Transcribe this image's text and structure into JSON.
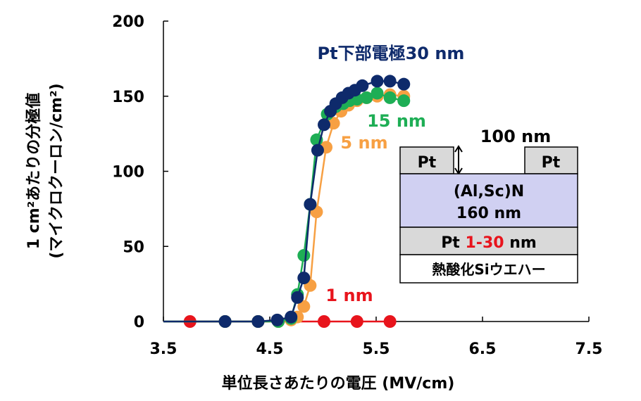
{
  "chart_data": {
    "type": "line",
    "xlabel": "単位長さあたりの電圧 (MV/cm)",
    "ylabel_lines": [
      "1 cm²あたりの分極値",
      "(マイクロクーロン/cm²)"
    ],
    "xlim": [
      3.5,
      7.5
    ],
    "ylim": [
      0,
      200
    ],
    "xticks": [
      "3.5",
      "4.5",
      "5.5",
      "6.5",
      "7.5"
    ],
    "yticks": [
      "0",
      "50",
      "100",
      "150",
      "200"
    ],
    "grid": false,
    "series": [
      {
        "name": "1 nm",
        "color": "#e8141c",
        "x": [
          3.75,
          4.08,
          4.39,
          4.58,
          5.01,
          5.32,
          5.63
        ],
        "y": [
          0,
          0,
          0,
          0,
          0,
          0,
          0
        ]
      },
      {
        "name": "5 nm",
        "color": "#f7a043",
        "x": [
          4.08,
          4.39,
          4.58,
          4.7,
          4.76,
          4.82,
          4.88,
          4.94,
          5.03,
          5.1,
          5.17,
          5.24,
          5.32,
          5.41,
          5.51,
          5.63,
          5.76
        ],
        "y": [
          0,
          0,
          0,
          1,
          3,
          10,
          24,
          73,
          116,
          132,
          140,
          144,
          147,
          149,
          150,
          151,
          150
        ]
      },
      {
        "name": "15 nm",
        "color": "#1eae55",
        "x": [
          4.08,
          4.39,
          4.58,
          4.7,
          4.76,
          4.82,
          4.88,
          4.94,
          5.04,
          5.12,
          5.19,
          5.25,
          5.32,
          5.41,
          5.51,
          5.63,
          5.76
        ],
        "y": [
          0,
          0,
          0,
          2,
          18,
          44,
          78,
          121,
          138,
          143,
          145,
          147,
          148,
          149,
          152,
          149,
          147
        ]
      },
      {
        "name": "Pt下部電極30 nm",
        "color": "#0e2a6b",
        "x": [
          4.08,
          4.39,
          4.57,
          4.7,
          4.76,
          4.82,
          4.88,
          4.95,
          5.01,
          5.07,
          5.12,
          5.18,
          5.24,
          5.3,
          5.37,
          5.51,
          5.63,
          5.76
        ],
        "y": [
          0,
          0,
          1,
          3,
          16,
          29,
          78,
          114,
          131,
          140,
          145,
          149,
          152,
          154,
          157,
          160,
          160,
          158
        ]
      }
    ],
    "inset": {
      "top_electrode": "Pt",
      "gap_label": "100 nm",
      "film_line1": "(Al,Sc)N",
      "film_line2": "160 nm",
      "bottom_pt_prefix": "Pt ",
      "bottom_pt_thickness": "1-30",
      "bottom_pt_suffix": " nm",
      "substrate": "熱酸化Siウエハー"
    }
  }
}
